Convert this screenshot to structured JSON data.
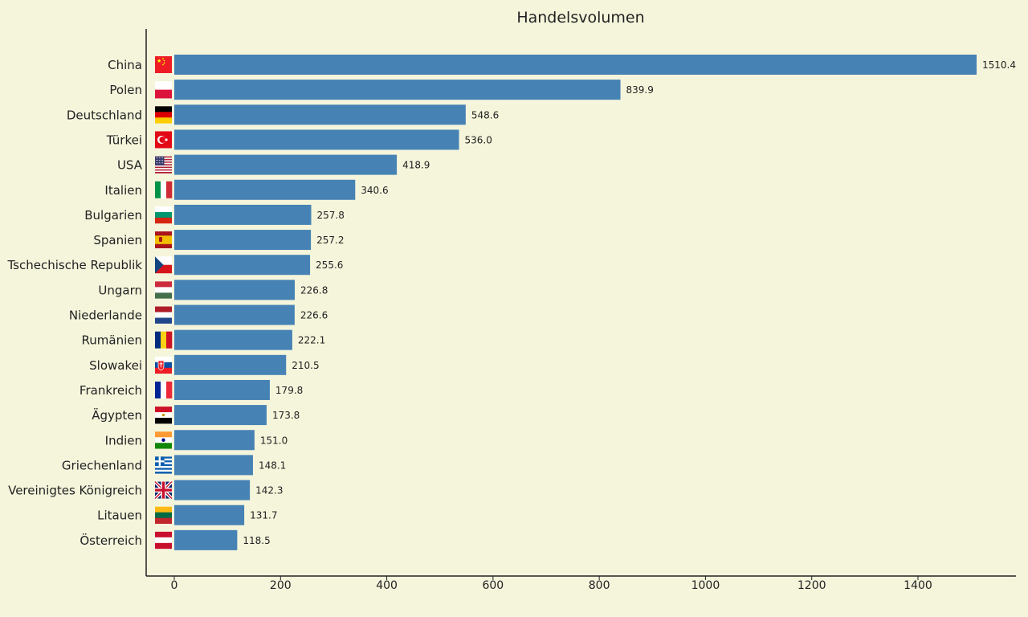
{
  "chart_data": {
    "type": "bar",
    "orientation": "horizontal",
    "title": "Handelsvolumen",
    "xlabel": "",
    "ylabel": "",
    "xlim": [
      -50,
      1580
    ],
    "xticks": [
      0,
      200,
      400,
      600,
      800,
      1000,
      1200,
      1400
    ],
    "grid": false,
    "legend": "none",
    "bar_color": "#4682b4",
    "value_label_format": "0.1f",
    "categories": [
      "China",
      "Polen",
      "Deutschland",
      "Türkei",
      "USA",
      "Italien",
      "Bulgarien",
      "Spanien",
      "Tschechische Republik",
      "Ungarn",
      "Niederlande",
      "Rumänien",
      "Slowakei",
      "Frankreich",
      "Ägypten",
      "Indien",
      "Griechenland",
      "Vereinigtes Königreich",
      "Litauen",
      "Österreich"
    ],
    "values": [
      1510.4,
      839.9,
      548.6,
      536.0,
      418.9,
      340.6,
      257.8,
      257.2,
      255.6,
      226.8,
      226.6,
      222.1,
      210.5,
      179.8,
      173.8,
      151.0,
      148.1,
      142.3,
      131.7,
      118.5
    ],
    "flag_icons": [
      "china-flag-icon",
      "poland-flag-icon",
      "germany-flag-icon",
      "turkey-flag-icon",
      "usa-flag-icon",
      "italy-flag-icon",
      "bulgaria-flag-icon",
      "spain-flag-icon",
      "czech-republic-flag-icon",
      "hungary-flag-icon",
      "netherlands-flag-icon",
      "romania-flag-icon",
      "slovakia-flag-icon",
      "france-flag-icon",
      "egypt-flag-icon",
      "india-flag-icon",
      "greece-flag-icon",
      "united-kingdom-flag-icon",
      "lithuania-flag-icon",
      "austria-flag-icon"
    ]
  },
  "colors": {
    "background": "#f5f5dc",
    "bar": "#4682b4",
    "text": "#222222",
    "axis": "#222222"
  }
}
